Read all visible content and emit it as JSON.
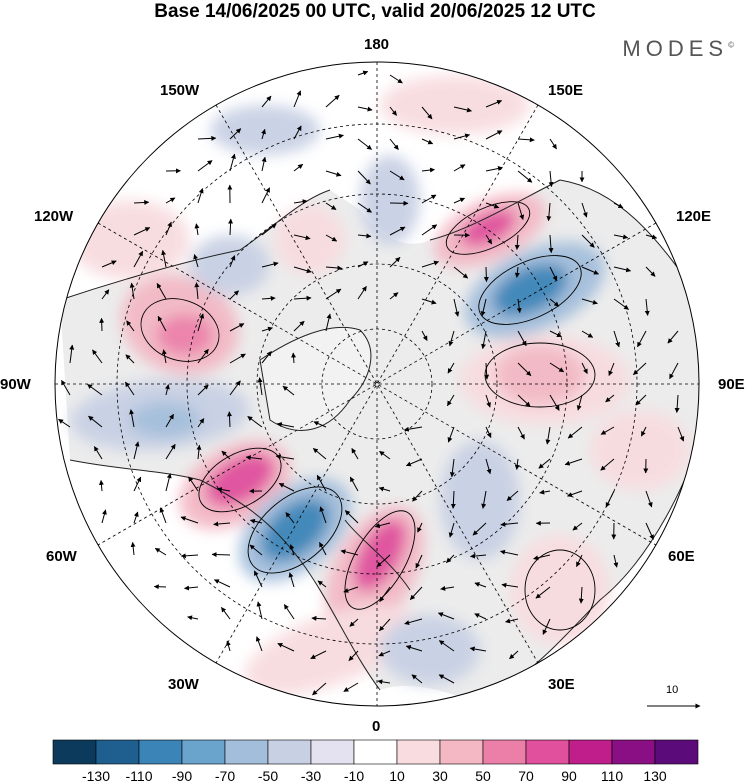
{
  "title": "Base 14/06/2025 00 UTC, valid 20/06/2025 12 UTC",
  "brand": "MODES",
  "brand_mark": "©",
  "longitude_labels": {
    "top": "180",
    "bottom": "0",
    "left": "90W",
    "right": "90E",
    "upper_left_1": "150W",
    "upper_left_2": "120W",
    "upper_right_1": "150E",
    "upper_right_2": "120E",
    "lower_left_1": "60W",
    "lower_left_2": "30W",
    "lower_right_1": "60E",
    "lower_right_2": "30E"
  },
  "vector_scale_label": "10",
  "colorbar": {
    "tick_labels": [
      "-130",
      "-110",
      "-90",
      "-70",
      "-50",
      "-30",
      "-10",
      "10",
      "30",
      "50",
      "70",
      "90",
      "110",
      "130"
    ],
    "colors": [
      "#0b3a5c",
      "#1f5f8f",
      "#3a84b8",
      "#6aa4cc",
      "#a3bedb",
      "#c8d0e4",
      "#e4e2f0",
      "#ffffff",
      "#f8dcdf",
      "#f3b8c4",
      "#ec7fa8",
      "#e0509c",
      "#c01e8a",
      "#8a0f84",
      "#5b0c7a"
    ]
  },
  "colors": {
    "land_background": "#ececec",
    "coastline": "#222222",
    "gridline": "#000000"
  }
}
